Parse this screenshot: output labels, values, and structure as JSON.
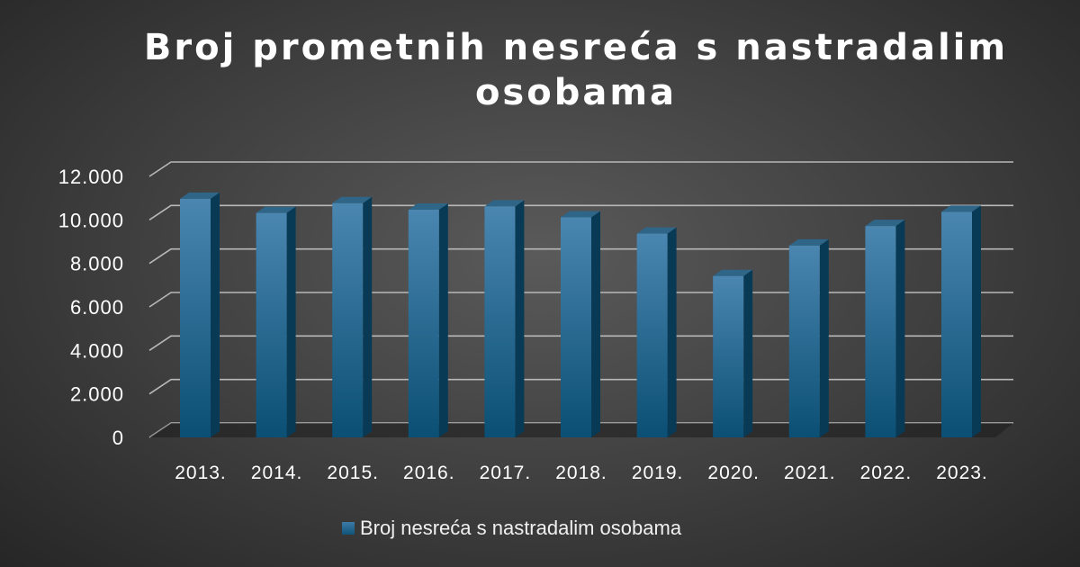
{
  "chart_data": {
    "type": "bar",
    "title": "Broj prometnih nesreća s nastradalim osobama",
    "categories": [
      "2013.",
      "2014.",
      "2015.",
      "2016.",
      "2017.",
      "2018.",
      "2019.",
      "2020.",
      "2021.",
      "2022.",
      "2023."
    ],
    "series": [
      {
        "name": "Broj nesreća s nastradalim osobama",
        "values": [
          11300,
          10650,
          11100,
          10800,
          10950,
          10450,
          9700,
          7750,
          9150,
          10050,
          10700
        ]
      }
    ],
    "y_ticks": [
      "0",
      "2.000",
      "4.000",
      "6.000",
      "8.000",
      "10.000",
      "12.000"
    ],
    "ylim": [
      0,
      12000
    ],
    "grid": true,
    "legend_position": "bottom",
    "colors": {
      "bar_top": "#4a86b0",
      "bar_bottom": "#0b4f74",
      "bar_side": "#083a56",
      "bar_cap": "#2f6587",
      "grid": "#b8b8b8"
    }
  }
}
